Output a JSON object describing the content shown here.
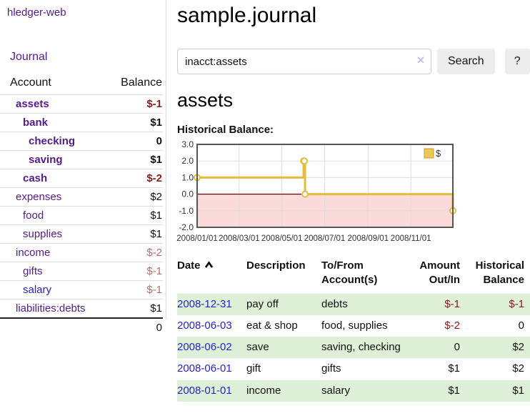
{
  "app": {
    "brand": "hledger-web",
    "nav_journal": "Journal"
  },
  "colors": {
    "link_purple": "#551a8b",
    "link_blue": "#2723d2",
    "negative": "#8b1a1a",
    "negative_muted": "#b76f6f",
    "row_stripe_green": "#dff0d8",
    "chart_line": "#e3bc3f",
    "chart_negative_fill": "#fbdada",
    "chart_zero_line": "#7f0000"
  },
  "sidebar": {
    "table": {
      "col_account": "Account",
      "col_balance": "Balance"
    },
    "accounts": [
      {
        "name": "assets",
        "indent": 1,
        "bold": true,
        "balance": "$-1",
        "bal_class": "neg",
        "link": "purple"
      },
      {
        "name": "bank",
        "indent": 2,
        "bold": true,
        "balance": "$1",
        "bal_class": "",
        "link": "purple"
      },
      {
        "name": "checking",
        "indent": 3,
        "bold": true,
        "balance": "0",
        "bal_class": "",
        "link": "purple"
      },
      {
        "name": "saving",
        "indent": 3,
        "bold": true,
        "balance": "$1",
        "bal_class": "",
        "link": "purple"
      },
      {
        "name": "cash",
        "indent": 2,
        "bold": true,
        "balance": "$-2",
        "bal_class": "neg",
        "link": "purple"
      },
      {
        "name": "expenses",
        "indent": 1,
        "bold": false,
        "balance": "$2",
        "bal_class": "",
        "link": "purple"
      },
      {
        "name": "food",
        "indent": 2,
        "bold": false,
        "balance": "$1",
        "bal_class": "",
        "link": "purple"
      },
      {
        "name": "supplies",
        "indent": 2,
        "bold": false,
        "balance": "$1",
        "bal_class": "",
        "link": "purple"
      },
      {
        "name": "income",
        "indent": 1,
        "bold": false,
        "balance": "$-2",
        "bal_class": "negm",
        "link": "purple"
      },
      {
        "name": "gifts",
        "indent": 2,
        "bold": false,
        "balance": "$-1",
        "bal_class": "negm",
        "link": "purple"
      },
      {
        "name": "salary",
        "indent": 2,
        "bold": false,
        "balance": "$-1",
        "bal_class": "negm",
        "link": "blue"
      },
      {
        "name": "liabilities:debts",
        "indent": 1,
        "bold": false,
        "balance": "$1",
        "bal_class": "",
        "link": "purple"
      }
    ],
    "total": "0"
  },
  "header": {
    "title": "sample.journal"
  },
  "search": {
    "value": "inacct:assets",
    "clear_label": "✕",
    "button": "Search",
    "help": "?"
  },
  "account_page": {
    "heading": "assets",
    "chart_label": "Historical Balance:"
  },
  "chart_data": {
    "type": "line",
    "step": true,
    "title": "Historical Balance:",
    "xlabel": "",
    "ylabel": "",
    "x_domain": [
      "2008-01-01",
      "2008-12-31"
    ],
    "ylim": [
      -2,
      3
    ],
    "y_ticks": [
      3.0,
      2.0,
      1.0,
      0.0,
      -1.0,
      -2.0
    ],
    "x_ticks": [
      "2008/01/01",
      "2008/03/01",
      "2008/05/01",
      "2008/07/01",
      "2008/09/01",
      "2008/11/01"
    ],
    "grid": true,
    "legend_position": "top-right",
    "negative_region": true,
    "series": [
      {
        "name": "$",
        "color": "#e3bc3f",
        "points": [
          [
            "2008-01-01",
            1
          ],
          [
            "2008-06-01",
            2
          ],
          [
            "2008-06-02",
            2
          ],
          [
            "2008-06-03",
            0
          ],
          [
            "2008-12-31",
            -1
          ]
        ]
      }
    ]
  },
  "register": {
    "columns": [
      "Date",
      "Description",
      "To/From Account(s)",
      "Amount Out/In",
      "Historical Balance"
    ],
    "sort": {
      "column": "Date",
      "direction": "asc"
    },
    "rows": [
      {
        "date": "2008-12-31",
        "description": "pay off",
        "accounts": "debts",
        "amount": "$-1",
        "amount_neg": true,
        "balance": "$-1",
        "balance_neg": true
      },
      {
        "date": "2008-06-03",
        "description": "eat & shop",
        "accounts": "food, supplies",
        "amount": "$-2",
        "amount_neg": true,
        "balance": "0",
        "balance_neg": false
      },
      {
        "date": "2008-06-02",
        "description": "save",
        "accounts": "saving, checking",
        "amount": "0",
        "amount_neg": false,
        "balance": "$2",
        "balance_neg": false
      },
      {
        "date": "2008-06-01",
        "description": "gift",
        "accounts": "gifts",
        "amount": "$1",
        "amount_neg": false,
        "balance": "$2",
        "balance_neg": false
      },
      {
        "date": "2008-01-01",
        "description": "income",
        "accounts": "salary",
        "amount": "$1",
        "amount_neg": false,
        "balance": "$1",
        "balance_neg": false
      }
    ]
  }
}
